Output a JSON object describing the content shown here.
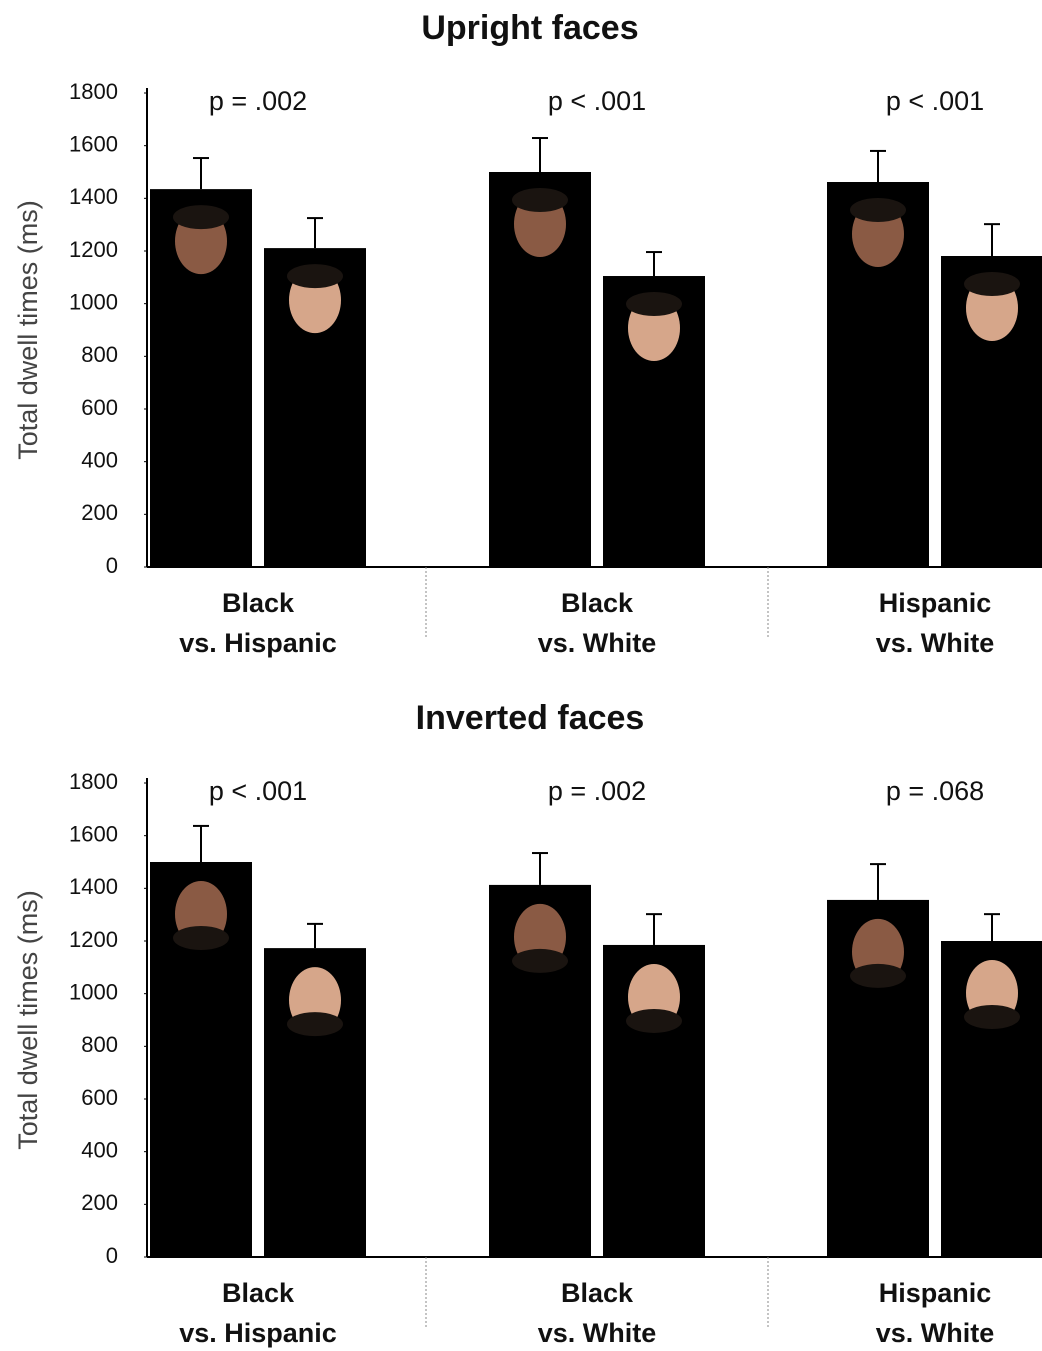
{
  "chart_data": [
    {
      "type": "bar",
      "title": "Upright faces",
      "y_label": "Total dwell times (ms)",
      "categories": [
        [
          "Black",
          "vs. Hispanic"
        ],
        [
          "Black",
          "vs. White"
        ],
        [
          "Hispanic",
          "vs. White"
        ]
      ],
      "annotations": [
        "p = .002",
        "p < .001",
        "p < .001"
      ],
      "series": [
        {
          "color": "#000000",
          "values": [
            1435,
            1500,
            1462
          ],
          "errors": [
            118,
            129,
            118
          ]
        },
        {
          "color": "#000000",
          "values": [
            1211,
            1105,
            1181
          ],
          "errors": [
            114,
            91,
            121
          ]
        }
      ],
      "ylim": [
        0,
        1800
      ],
      "yticks": [
        0,
        200,
        400,
        600,
        800,
        1000,
        1200,
        1400,
        1600,
        1800
      ]
    },
    {
      "type": "bar",
      "title": "Inverted faces",
      "y_label": "Total dwell times (ms)",
      "categories": [
        [
          "Black",
          "vs. Hispanic"
        ],
        [
          "Black",
          "vs. White"
        ],
        [
          "Hispanic",
          "vs. White"
        ]
      ],
      "annotations": [
        "p < .001",
        "p = .002",
        "p = .068"
      ],
      "series": [
        {
          "color": "#000000",
          "values": [
            1500,
            1413,
            1356
          ],
          "errors": [
            137,
            121,
            136
          ]
        },
        {
          "color": "#000000",
          "values": [
            1173,
            1185,
            1200
          ],
          "errors": [
            92,
            117,
            102
          ]
        }
      ],
      "ylim": [
        0,
        1800
      ],
      "yticks": [
        0,
        200,
        400,
        600,
        800,
        1000,
        1200,
        1400,
        1600,
        1800
      ]
    }
  ]
}
